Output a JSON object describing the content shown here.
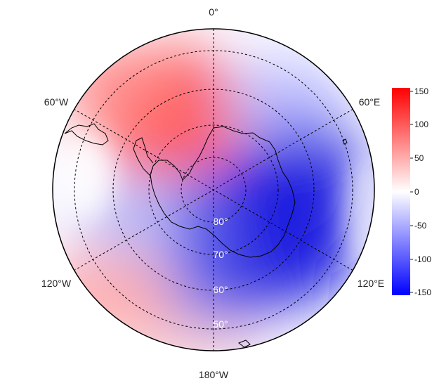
{
  "map": {
    "projection": "south-polar-stereographic",
    "longitude_labels": [
      "0°",
      "60°E",
      "120°E",
      "180°W",
      "120°W",
      "60°W"
    ],
    "latitude_labels": [
      "80°",
      "70°",
      "60°",
      "50°"
    ],
    "colors": {
      "negative": "#0000ff",
      "zero": "#ffffff",
      "positive": "#ff0000",
      "grid": "#000000",
      "coast": "#000000"
    }
  },
  "colorbar": {
    "ticks": [
      "150",
      "100",
      "50",
      "0",
      "-50",
      "-100",
      "-150"
    ],
    "range": [
      -150,
      150
    ]
  }
}
